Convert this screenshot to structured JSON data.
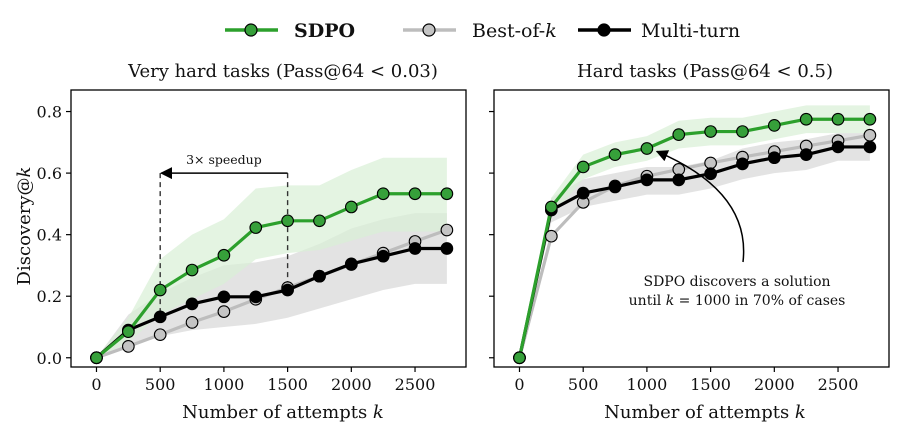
{
  "chart_data": {
    "type": "line",
    "legend": {
      "placement": "top-center",
      "entries": [
        {
          "series": "sdpo",
          "label": "SDPO",
          "bold": true
        },
        {
          "series": "bestofk",
          "label_prefix": "Best-of-",
          "label_var": "k"
        },
        {
          "series": "multiturn",
          "label": "Multi-turn"
        }
      ]
    },
    "y_axis_label_prefix": "Discovery@",
    "y_axis_label_var": "k",
    "x_axis_label_prefix": "Number of attempts ",
    "x_axis_label_var": "k",
    "colors": {
      "sdpo": "#2ca02c",
      "sdpo_marker_fill": "#36a03a",
      "sdpo_band": "#d9efd5",
      "bestofk": "#bdbdbd",
      "bestofk_marker_fill": "#c4c4c4",
      "multiturn": "#000000",
      "grey_band": "#dedede"
    },
    "panels": [
      {
        "id": "very-hard",
        "title": "Very hard tasks (Pass@64 < 0.03)",
        "xlim": [
          -200,
          2900
        ],
        "ylim": [
          -0.03,
          0.87
        ],
        "x_ticks": [
          0,
          500,
          1000,
          1500,
          2000,
          2500
        ],
        "y_ticks": [
          0.0,
          0.2,
          0.4,
          0.6,
          0.8
        ],
        "y_tick_labels": [
          "0.0",
          "0.2",
          "0.4",
          "0.6",
          "0.8"
        ],
        "x": [
          0,
          250,
          500,
          750,
          1000,
          1250,
          1500,
          1750,
          2000,
          2250,
          2500,
          2750
        ],
        "series": [
          {
            "id": "sdpo",
            "values": [
              0.0,
              0.085,
              0.22,
              0.285,
              0.333,
              0.423,
              0.445,
              0.445,
              0.49,
              0.533,
              0.533,
              0.533
            ],
            "band_low": [
              0.0,
              0.05,
              0.14,
              0.19,
              0.24,
              0.32,
              0.34,
              0.35,
              0.38,
              0.41,
              0.41,
              0.41
            ],
            "band_high": [
              0.0,
              0.13,
              0.32,
              0.4,
              0.45,
              0.55,
              0.56,
              0.56,
              0.61,
              0.65,
              0.65,
              0.65
            ]
          },
          {
            "id": "bestofk",
            "values": [
              0.0,
              0.037,
              0.075,
              0.115,
              0.15,
              0.19,
              0.228,
              0.265,
              0.303,
              0.34,
              0.378,
              0.415
            ]
          },
          {
            "id": "multiturn",
            "values": [
              0.0,
              0.09,
              0.133,
              0.175,
              0.198,
              0.198,
              0.22,
              0.265,
              0.305,
              0.33,
              0.355,
              0.355
            ],
            "band_low": [
              0.0,
              0.04,
              0.07,
              0.09,
              0.1,
              0.11,
              0.13,
              0.16,
              0.19,
              0.22,
              0.24,
              0.24
            ],
            "band_high": [
              0.0,
              0.14,
              0.21,
              0.26,
              0.3,
              0.31,
              0.33,
              0.37,
              0.42,
              0.45,
              0.47,
              0.47
            ]
          }
        ],
        "annotation": {
          "text": "3× speedup",
          "x_from": 1500,
          "x_to": 500,
          "y": 0.6,
          "dashed_lines": [
            500,
            1500
          ]
        }
      },
      {
        "id": "hard",
        "title": "Hard tasks (Pass@64 < 0.5)",
        "xlim": [
          -200,
          2900
        ],
        "ylim": [
          -0.03,
          0.87
        ],
        "x_ticks": [
          0,
          500,
          1000,
          1500,
          2000,
          2500
        ],
        "y_ticks": [
          0.0,
          0.2,
          0.4,
          0.6,
          0.8
        ],
        "x": [
          0,
          250,
          500,
          750,
          1000,
          1250,
          1500,
          1750,
          2000,
          2250,
          2500,
          2750
        ],
        "series": [
          {
            "id": "sdpo",
            "values": [
              0.0,
              0.49,
              0.62,
              0.66,
              0.68,
              0.725,
              0.735,
              0.735,
              0.755,
              0.775,
              0.775,
              0.775
            ],
            "band_low": [
              0.0,
              0.46,
              0.58,
              0.62,
              0.64,
              0.68,
              0.69,
              0.69,
              0.71,
              0.73,
              0.73,
              0.73
            ],
            "band_high": [
              0.0,
              0.52,
              0.66,
              0.7,
              0.72,
              0.77,
              0.78,
              0.78,
              0.8,
              0.82,
              0.82,
              0.82
            ]
          },
          {
            "id": "bestofk",
            "values": [
              0.0,
              0.395,
              0.505,
              0.558,
              0.59,
              0.612,
              0.633,
              0.652,
              0.67,
              0.688,
              0.705,
              0.723
            ]
          },
          {
            "id": "multiturn",
            "values": [
              0.0,
              0.48,
              0.535,
              0.555,
              0.578,
              0.578,
              0.598,
              0.63,
              0.65,
              0.66,
              0.685,
              0.685
            ],
            "band_low": [
              0.0,
              0.44,
              0.49,
              0.51,
              0.53,
              0.53,
              0.55,
              0.58,
              0.6,
              0.61,
              0.64,
              0.64
            ],
            "band_high": [
              0.0,
              0.52,
              0.58,
              0.6,
              0.62,
              0.62,
              0.64,
              0.68,
              0.7,
              0.71,
              0.73,
              0.73
            ]
          }
        ],
        "annotation": {
          "lines": [
            {
              "text": "SDPO discovers a solution"
            },
            {
              "prefix": "until ",
              "var": "k",
              "suffix": " = 1000 in 70% of cases"
            }
          ],
          "arrow_target_x": 1000,
          "arrow_target_y": 0.68
        }
      }
    ]
  }
}
